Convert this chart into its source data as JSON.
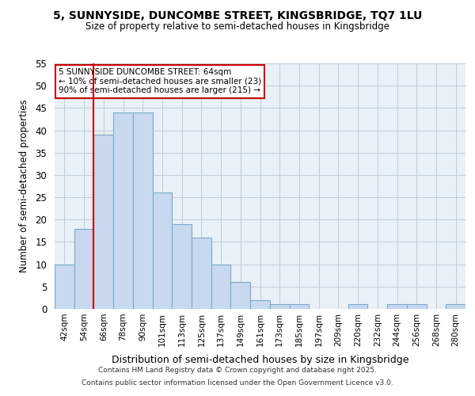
{
  "title1": "5, SUNNYSIDE, DUNCOMBE STREET, KINGSBRIDGE, TQ7 1LU",
  "title2": "Size of property relative to semi-detached houses in Kingsbridge",
  "xlabel": "Distribution of semi-detached houses by size in Kingsbridge",
  "ylabel": "Number of semi-detached properties",
  "categories": [
    "42sqm",
    "54sqm",
    "66sqm",
    "78sqm",
    "90sqm",
    "101sqm",
    "113sqm",
    "125sqm",
    "137sqm",
    "149sqm",
    "161sqm",
    "173sqm",
    "185sqm",
    "197sqm",
    "209sqm",
    "220sqm",
    "232sqm",
    "244sqm",
    "256sqm",
    "268sqm",
    "280sqm"
  ],
  "values": [
    10,
    18,
    39,
    44,
    44,
    26,
    19,
    16,
    10,
    6,
    2,
    1,
    1,
    0,
    0,
    1,
    0,
    1,
    1,
    0,
    1
  ],
  "bar_color": "#c8d8ee",
  "bar_edge_color": "#7aaaca",
  "vline_color": "#cc0000",
  "vline_index": 2,
  "annotation_lines": [
    "5 SUNNYSIDE DUNCOMBE STREET: 64sqm",
    "← 10% of semi-detached houses are smaller (23)",
    "90% of semi-detached houses are larger (215) →"
  ],
  "annotation_box_color": "#cc0000",
  "annotation_box_fill": "#ffffff",
  "ylim": [
    0,
    55
  ],
  "yticks": [
    0,
    5,
    10,
    15,
    20,
    25,
    30,
    35,
    40,
    45,
    50,
    55
  ],
  "background_color": "#ffffff",
  "plot_bg_color": "#e8f0f8",
  "grid_color": "#c0ccd8",
  "footer1": "Contains HM Land Registry data © Crown copyright and database right 2025.",
  "footer2": "Contains public sector information licensed under the Open Government Licence v3.0."
}
